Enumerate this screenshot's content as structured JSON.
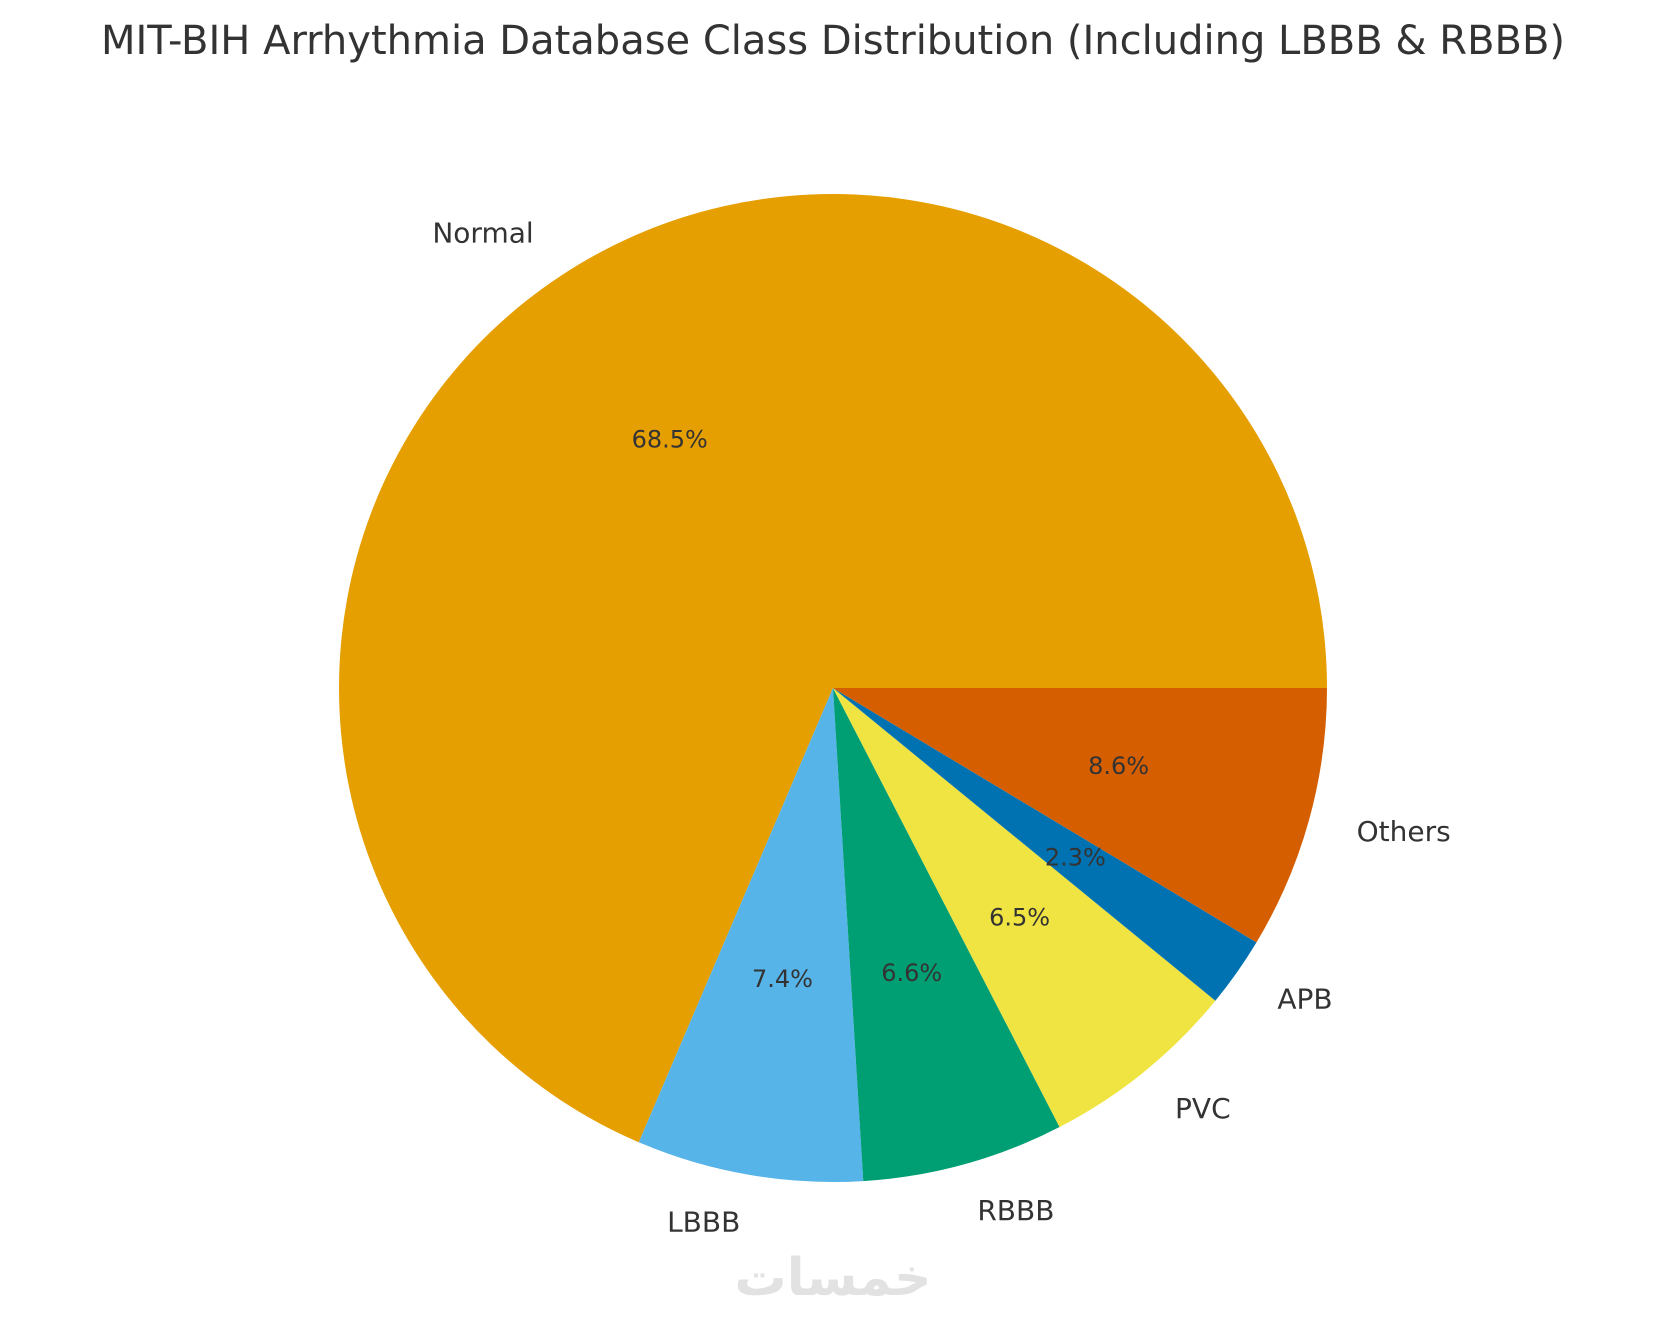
{
  "chart_data": {
    "type": "pie",
    "title": "MIT-BIH Arrhythmia Database Class Distribution (Including LBBB & RBBB)",
    "start_angle_deg": 0,
    "direction": "counterclockwise",
    "slices": [
      {
        "label": "Normal",
        "value": 68.5,
        "pct_label": "68.5%",
        "color": "#E69F00"
      },
      {
        "label": "LBBB",
        "value": 7.4,
        "pct_label": "7.4%",
        "color": "#56B4E9"
      },
      {
        "label": "RBBB",
        "value": 6.6,
        "pct_label": "6.6%",
        "color": "#009E73"
      },
      {
        "label": "PVC",
        "value": 6.5,
        "pct_label": "6.5%",
        "color": "#F0E442"
      },
      {
        "label": "APB",
        "value": 2.3,
        "pct_label": "2.3%",
        "color": "#0072B2"
      },
      {
        "label": "Others",
        "value": 8.6,
        "pct_label": "8.6%",
        "color": "#D55E00"
      }
    ]
  },
  "watermark": {
    "text": "خمسات",
    "color": "#e2e2e2"
  }
}
